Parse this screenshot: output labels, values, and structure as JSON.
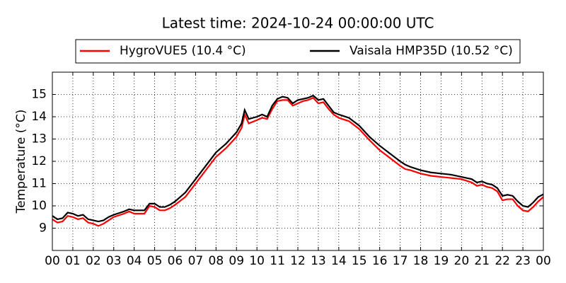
{
  "chart_data": {
    "type": "line",
    "title": "Latest time: 2024-10-24 00:00:00 UTC",
    "ylabel": "Temperature (°C)",
    "xlim": [
      0,
      24
    ],
    "xticks": [
      {
        "value": 0,
        "label": "00"
      },
      {
        "value": 1,
        "label": "01"
      },
      {
        "value": 2,
        "label": "02"
      },
      {
        "value": 3,
        "label": "03"
      },
      {
        "value": 4,
        "label": "04"
      },
      {
        "value": 5,
        "label": "05"
      },
      {
        "value": 6,
        "label": "06"
      },
      {
        "value": 7,
        "label": "07"
      },
      {
        "value": 8,
        "label": "08"
      },
      {
        "value": 9,
        "label": "09"
      },
      {
        "value": 10,
        "label": "10"
      },
      {
        "value": 11,
        "label": "11"
      },
      {
        "value": 12,
        "label": "12"
      },
      {
        "value": 13,
        "label": "13"
      },
      {
        "value": 14,
        "label": "14"
      },
      {
        "value": 15,
        "label": "15"
      },
      {
        "value": 16,
        "label": "16"
      },
      {
        "value": 17,
        "label": "17"
      },
      {
        "value": 18,
        "label": "18"
      },
      {
        "value": 19,
        "label": "19"
      },
      {
        "value": 20,
        "label": "20"
      },
      {
        "value": 21,
        "label": "21"
      },
      {
        "value": 22,
        "label": "22"
      },
      {
        "value": 23,
        "label": "23"
      },
      {
        "value": 24,
        "label": "00"
      }
    ],
    "ylim": [
      8,
      16
    ],
    "yticks": [
      9,
      10,
      11,
      12,
      13,
      14,
      15
    ],
    "grid": true,
    "legend": "top",
    "x": [
      0,
      0.25,
      0.5,
      0.75,
      1,
      1.25,
      1.5,
      1.75,
      2,
      2.25,
      2.5,
      2.75,
      3,
      3.5,
      3.75,
      4,
      4.5,
      4.75,
      5,
      5.25,
      5.5,
      5.75,
      6,
      6.5,
      7,
      7.5,
      8,
      8.25,
      8.5,
      8.75,
      9,
      9.25,
      9.4,
      9.6,
      10,
      10.25,
      10.5,
      10.75,
      11,
      11.25,
      11.5,
      11.75,
      12,
      12.25,
      12.5,
      12.75,
      13,
      13.25,
      13.5,
      13.75,
      14,
      14.5,
      15,
      15.5,
      16,
      16.5,
      17,
      17.25,
      17.5,
      18,
      18.5,
      19,
      19.5,
      20,
      20.5,
      20.75,
      21,
      21.25,
      21.5,
      21.75,
      22,
      22.25,
      22.5,
      22.75,
      23,
      23.25,
      23.5,
      23.75,
      24
    ],
    "series": [
      {
        "name": "HygroVUE5 (10.4 °C)",
        "color": "#ff0000",
        "values": [
          9.4,
          9.25,
          9.3,
          9.55,
          9.5,
          9.4,
          9.45,
          9.25,
          9.2,
          9.1,
          9.2,
          9.35,
          9.5,
          9.65,
          9.75,
          9.65,
          9.65,
          10.0,
          9.95,
          9.8,
          9.8,
          9.9,
          10.05,
          10.4,
          11.0,
          11.6,
          12.2,
          12.4,
          12.6,
          12.85,
          13.1,
          13.5,
          14.1,
          13.7,
          13.85,
          13.95,
          13.9,
          14.35,
          14.7,
          14.75,
          14.75,
          14.5,
          14.6,
          14.7,
          14.75,
          14.85,
          14.6,
          14.65,
          14.35,
          14.1,
          13.95,
          13.8,
          13.45,
          12.95,
          12.5,
          12.15,
          11.8,
          11.65,
          11.6,
          11.45,
          11.35,
          11.3,
          11.25,
          11.2,
          11.05,
          10.9,
          10.95,
          10.85,
          10.8,
          10.65,
          10.25,
          10.3,
          10.3,
          10.0,
          9.8,
          9.75,
          9.95,
          10.2,
          10.4
        ]
      },
      {
        "name": "Vaisala HMP35D (10.52 °C)",
        "color": "#000000",
        "values": [
          9.55,
          9.4,
          9.45,
          9.7,
          9.65,
          9.55,
          9.6,
          9.4,
          9.35,
          9.3,
          9.35,
          9.5,
          9.6,
          9.75,
          9.85,
          9.8,
          9.8,
          10.1,
          10.1,
          9.95,
          9.95,
          10.05,
          10.2,
          10.6,
          11.2,
          11.8,
          12.4,
          12.6,
          12.8,
          13.05,
          13.3,
          13.7,
          14.3,
          13.9,
          14.0,
          14.1,
          14.0,
          14.5,
          14.8,
          14.9,
          14.85,
          14.6,
          14.75,
          14.8,
          14.85,
          14.95,
          14.75,
          14.8,
          14.5,
          14.2,
          14.1,
          13.95,
          13.6,
          13.1,
          12.7,
          12.35,
          12.0,
          11.85,
          11.75,
          11.6,
          11.5,
          11.45,
          11.4,
          11.3,
          11.2,
          11.05,
          11.1,
          11.0,
          10.95,
          10.8,
          10.45,
          10.5,
          10.45,
          10.2,
          10.0,
          9.95,
          10.15,
          10.4,
          10.52
        ]
      }
    ]
  }
}
